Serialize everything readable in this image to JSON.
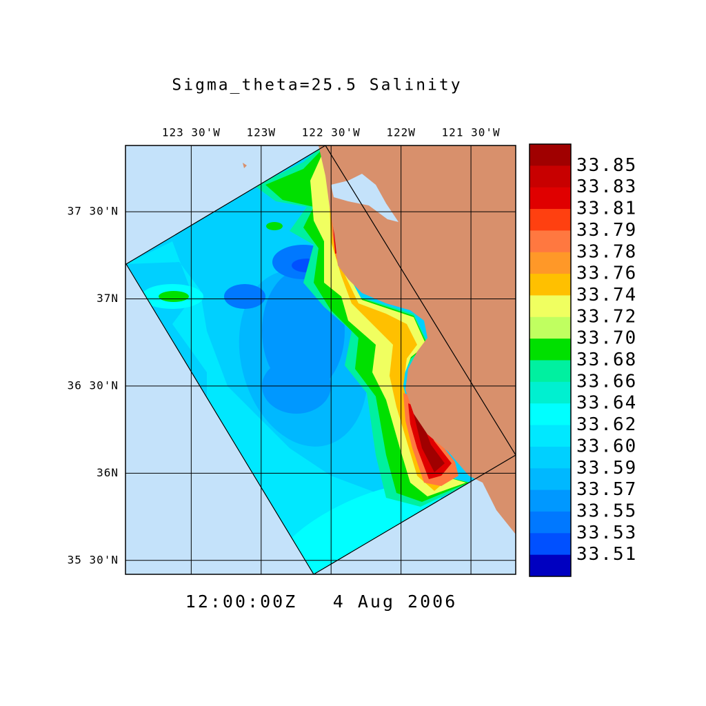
{
  "title": "Sigma_theta=25.5 Salinity",
  "time_label": "12:00:00Z",
  "date_label": "4 Aug 2006",
  "map": {
    "lonlim": [
      -123.97,
      -121.18
    ],
    "latlim": [
      35.42,
      37.88
    ],
    "grid": true,
    "lon_ticks": [
      {
        "value": -123.5,
        "label": "123 30'W"
      },
      {
        "value": -123.0,
        "label": "123W"
      },
      {
        "value": -122.5,
        "label": "122 30'W"
      },
      {
        "value": -122.0,
        "label": "122W"
      },
      {
        "value": -121.5,
        "label": "121 30'W"
      }
    ],
    "lat_ticks": [
      {
        "value": 37.5,
        "label": "37 30'N"
      },
      {
        "value": 37.0,
        "label": "37N"
      },
      {
        "value": 36.5,
        "label": "36 30'N"
      },
      {
        "value": 36.0,
        "label": "36N"
      },
      {
        "value": 35.5,
        "label": "35 30'N"
      }
    ],
    "ocean_color": "#c4e2fa",
    "land_color": "#d8906c"
  },
  "colorbar": {
    "colors": [
      "#a00000",
      "#c80000",
      "#e00000",
      "#ff4010",
      "#ff7840",
      "#ff9828",
      "#ffc000",
      "#f0ff60",
      "#c0ff60",
      "#00e000",
      "#00f0a0",
      "#00f0d0",
      "#00ffff",
      "#00e8ff",
      "#00d0ff",
      "#00b8ff",
      "#0098ff",
      "#0078ff",
      "#0050ff",
      "#0000c0"
    ],
    "levels": [
      33.85,
      33.83,
      33.81,
      33.79,
      33.78,
      33.76,
      33.74,
      33.72,
      {
        "value": 33.7,
        "label": "33.70"
      },
      33.68,
      33.66,
      33.64,
      33.62,
      {
        "value": 33.6,
        "label": "33.60"
      },
      33.59,
      33.57,
      33.55,
      33.53,
      33.51
    ]
  }
}
